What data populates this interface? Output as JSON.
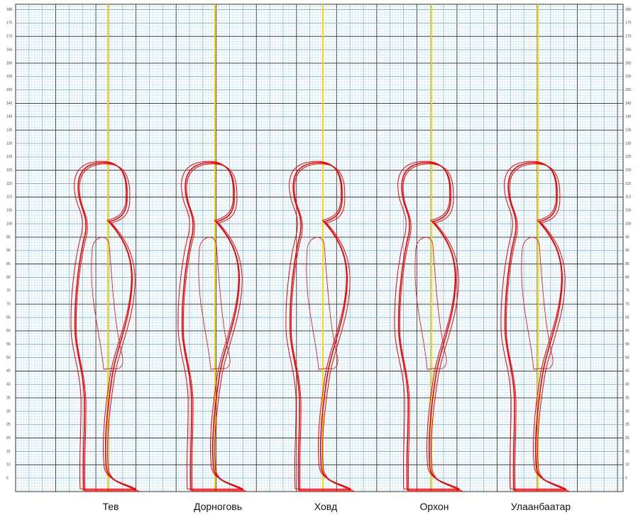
{
  "y_axis": {
    "range": [
      0,
      182
    ],
    "ticks": [
      5,
      10,
      15,
      20,
      25,
      30,
      35,
      40,
      45,
      50,
      55,
      60,
      65,
      70,
      75,
      80,
      85,
      90,
      95,
      100,
      105,
      110,
      115,
      120,
      125,
      130,
      135,
      140,
      145,
      150,
      155,
      160,
      165,
      170,
      175,
      180
    ]
  },
  "figures": [
    {
      "label": "Тев"
    },
    {
      "label": "Дорноговь"
    },
    {
      "label": "Ховд"
    },
    {
      "label": "Орхон"
    },
    {
      "label": "Улаанбаатар"
    }
  ]
}
